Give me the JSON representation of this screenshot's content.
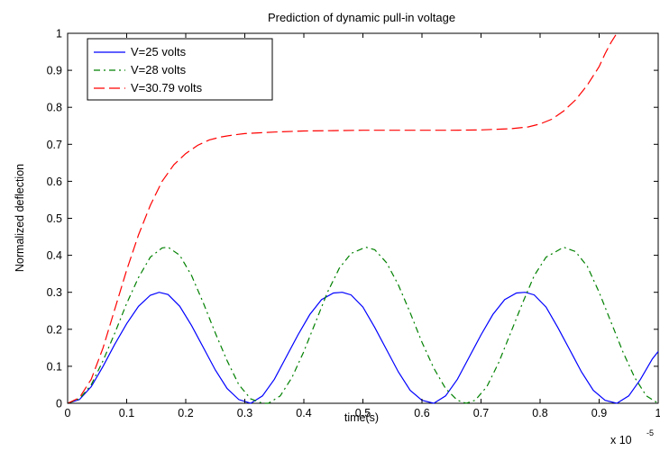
{
  "chart_data": {
    "type": "line",
    "title": "Prediction of dynamic pull-in voltage",
    "xlabel": "time(s)",
    "ylabel": "Normalized deflection",
    "x_multiplier": "x 10",
    "x_multiplier_exponent": "-5",
    "xlim": [
      0,
      1
    ],
    "ylim": [
      0,
      1
    ],
    "xticks": [
      "0",
      "0.1",
      "0.2",
      "0.3",
      "0.4",
      "0.5",
      "0.6",
      "0.7",
      "0.8",
      "0.9",
      "1"
    ],
    "yticks": [
      "0",
      "0.1",
      "0.2",
      "0.3",
      "0.4",
      "0.5",
      "0.6",
      "0.7",
      "0.8",
      "0.9",
      "1"
    ],
    "grid": false,
    "legend_position": "top-left",
    "series": [
      {
        "name": "V=25 volts",
        "color": "#0000ff",
        "style": "solid",
        "x": [
          0,
          0.02,
          0.04,
          0.06,
          0.08,
          0.1,
          0.12,
          0.14,
          0.155,
          0.17,
          0.19,
          0.21,
          0.23,
          0.25,
          0.27,
          0.29,
          0.31,
          0.33,
          0.35,
          0.37,
          0.39,
          0.41,
          0.43,
          0.45,
          0.465,
          0.48,
          0.5,
          0.52,
          0.54,
          0.56,
          0.58,
          0.6,
          0.62,
          0.64,
          0.66,
          0.68,
          0.7,
          0.72,
          0.74,
          0.76,
          0.775,
          0.79,
          0.81,
          0.83,
          0.85,
          0.87,
          0.89,
          0.91,
          0.93,
          0.95,
          0.97,
          0.99,
          1.0
        ],
        "y": [
          0,
          0.01,
          0.045,
          0.1,
          0.16,
          0.215,
          0.262,
          0.292,
          0.3,
          0.294,
          0.262,
          0.21,
          0.15,
          0.09,
          0.04,
          0.01,
          0.0,
          0.02,
          0.065,
          0.125,
          0.185,
          0.24,
          0.28,
          0.298,
          0.3,
          0.293,
          0.26,
          0.205,
          0.145,
          0.085,
          0.035,
          0.008,
          0.0,
          0.02,
          0.065,
          0.125,
          0.185,
          0.24,
          0.28,
          0.298,
          0.3,
          0.293,
          0.26,
          0.205,
          0.145,
          0.085,
          0.035,
          0.008,
          0.0,
          0.02,
          0.065,
          0.12,
          0.14
        ]
      },
      {
        "name": "V=28 volts",
        "color": "#008000",
        "style": "dashdot",
        "x": [
          0,
          0.02,
          0.04,
          0.06,
          0.08,
          0.1,
          0.12,
          0.14,
          0.16,
          0.17,
          0.19,
          0.21,
          0.23,
          0.25,
          0.27,
          0.29,
          0.31,
          0.33,
          0.34,
          0.36,
          0.38,
          0.4,
          0.42,
          0.44,
          0.46,
          0.48,
          0.505,
          0.52,
          0.54,
          0.56,
          0.58,
          0.6,
          0.62,
          0.64,
          0.66,
          0.675,
          0.69,
          0.71,
          0.73,
          0.75,
          0.77,
          0.79,
          0.81,
          0.84,
          0.86,
          0.88,
          0.9,
          0.92,
          0.94,
          0.96,
          0.98,
          1.0
        ],
        "y": [
          0,
          0.012,
          0.05,
          0.115,
          0.19,
          0.27,
          0.34,
          0.395,
          0.42,
          0.422,
          0.4,
          0.345,
          0.27,
          0.19,
          0.115,
          0.05,
          0.012,
          0.0,
          0.0,
          0.02,
          0.07,
          0.14,
          0.22,
          0.3,
          0.365,
          0.405,
          0.422,
          0.415,
          0.38,
          0.32,
          0.245,
          0.165,
          0.095,
          0.04,
          0.008,
          0.0,
          0.008,
          0.045,
          0.11,
          0.19,
          0.27,
          0.345,
          0.395,
          0.422,
          0.41,
          0.37,
          0.3,
          0.22,
          0.14,
          0.07,
          0.02,
          0.0
        ]
      },
      {
        "name": "V=30.79 volts",
        "color": "#ff0000",
        "style": "dashed",
        "x": [
          0,
          0.02,
          0.04,
          0.06,
          0.08,
          0.1,
          0.12,
          0.14,
          0.16,
          0.18,
          0.2,
          0.22,
          0.24,
          0.26,
          0.28,
          0.3,
          0.35,
          0.4,
          0.45,
          0.5,
          0.55,
          0.6,
          0.65,
          0.7,
          0.75,
          0.78,
          0.8,
          0.82,
          0.84,
          0.86,
          0.88,
          0.9,
          0.91,
          0.92,
          0.93
        ],
        "y": [
          0,
          0.015,
          0.065,
          0.15,
          0.255,
          0.36,
          0.455,
          0.535,
          0.6,
          0.645,
          0.675,
          0.697,
          0.712,
          0.72,
          0.725,
          0.729,
          0.733,
          0.736,
          0.737,
          0.738,
          0.738,
          0.738,
          0.738,
          0.739,
          0.742,
          0.747,
          0.755,
          0.768,
          0.79,
          0.82,
          0.86,
          0.91,
          0.945,
          0.975,
          1.0
        ]
      }
    ]
  }
}
